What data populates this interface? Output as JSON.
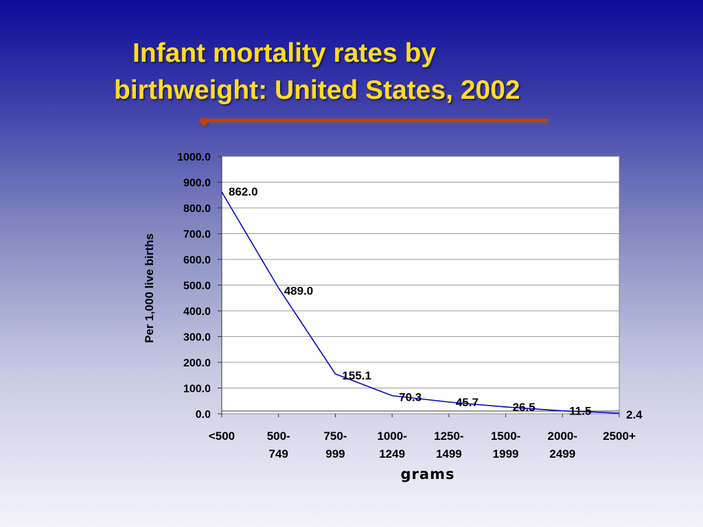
{
  "slide": {
    "title_line1": "Infant mortality rates by",
    "title_line2": "birthweight: United States, 2002",
    "accent_color": "#c0400e",
    "title_color": "#ffdd22"
  },
  "chart_data": {
    "type": "line",
    "categories": [
      [
        "<500"
      ],
      [
        "500-",
        "749"
      ],
      [
        "750-",
        "999"
      ],
      [
        "1000-",
        "1249"
      ],
      [
        "1250-",
        "1499"
      ],
      [
        "1500-",
        "1999"
      ],
      [
        "2000-",
        "2499"
      ],
      [
        "2500+"
      ]
    ],
    "values": [
      862.0,
      489.0,
      155.1,
      70.3,
      45.7,
      26.5,
      11.5,
      2.4
    ],
    "data_labels": [
      "862.0",
      "489.0",
      "155.1",
      "70.3",
      "45.7",
      "26.5",
      "11.5",
      "2.4"
    ],
    "xlabel": "grams",
    "ylabel": "Per 1,000 live births",
    "ylim": [
      0,
      1000
    ],
    "yticks": [
      "0.0",
      "100.0",
      "200.0",
      "300.0",
      "400.0",
      "500.0",
      "600.0",
      "700.0",
      "800.0",
      "900.0",
      "1000.0"
    ],
    "grid": true,
    "line_color": "#0000cc"
  }
}
